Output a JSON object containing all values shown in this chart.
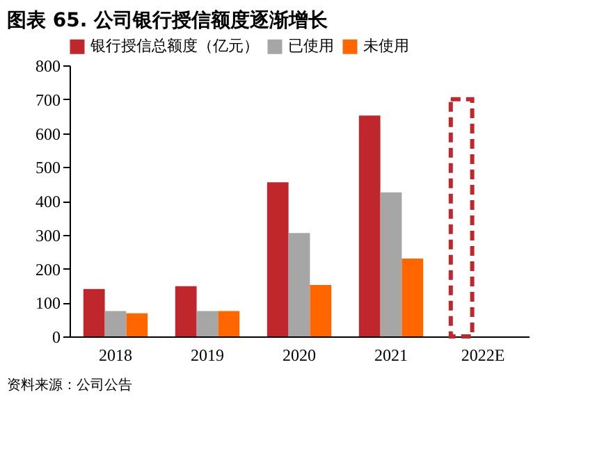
{
  "chart_data": {
    "type": "bar",
    "title": "图表 65. 公司银行授信额度逐渐增长",
    "categories": [
      "2018",
      "2019",
      "2020",
      "2021",
      "2022E"
    ],
    "series": [
      {
        "name": "银行授信总额度（亿元）",
        "color": "#c0272d",
        "values": [
          140,
          148,
          455,
          652,
          null
        ]
      },
      {
        "name": "已使用",
        "color": "#a6a6a6",
        "values": [
          75,
          75,
          305,
          425,
          null
        ]
      },
      {
        "name": "未使用",
        "color": "#ff6600",
        "values": [
          68,
          75,
          152,
          230,
          null
        ]
      },
      {
        "color": "#c0272d",
        "line_style": "dashed",
        "values": [
          null,
          null,
          null,
          null,
          700
        ]
      }
    ],
    "ylim": [
      0,
      800
    ],
    "yticks": [
      0,
      100,
      200,
      300,
      400,
      500,
      600,
      700,
      800
    ],
    "grid": false,
    "legend": "top",
    "annotations": [
      "资料来源：公司公告"
    ]
  }
}
